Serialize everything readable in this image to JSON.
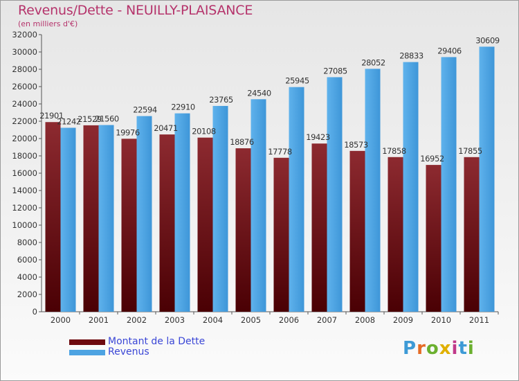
{
  "title": "Revenus/Dette - NEUILLY-PLAISANCE",
  "subtitle": "(en milliers d'€)",
  "logo": {
    "text": "Proxiti",
    "letters": [
      {
        "ch": "P",
        "color": "#3d9ad6"
      },
      {
        "ch": "r",
        "color": "#e56b25"
      },
      {
        "ch": "o",
        "color": "#6bb02f"
      },
      {
        "ch": "x",
        "color": "#e0b000"
      },
      {
        "ch": "i",
        "color": "#c0398a"
      },
      {
        "ch": "t",
        "color": "#3d9ad6"
      },
      {
        "ch": "i",
        "color": "#6bb02f"
      }
    ]
  },
  "colors": {
    "dette": "#7a0f14",
    "revenus": "#4da3e2",
    "title": "#b5336b",
    "legend_text": "#3a46d6"
  },
  "chart_data": {
    "type": "bar",
    "title": "Revenus/Dette - NEUILLY-PLAISANCE",
    "subtitle": "(en milliers d'€)",
    "categories": [
      "2000",
      "2001",
      "2002",
      "2003",
      "2004",
      "2005",
      "2006",
      "2007",
      "2008",
      "2009",
      "2010",
      "2011"
    ],
    "series": [
      {
        "name": "Montant de la Dette",
        "values": [
          21901,
          21529,
          19976,
          20471,
          20108,
          18876,
          17778,
          19423,
          18573,
          17858,
          16952,
          17855
        ]
      },
      {
        "name": "Revenus",
        "values": [
          21242,
          21560,
          22594,
          22910,
          23765,
          24540,
          25945,
          27085,
          28052,
          28833,
          29406,
          30609
        ]
      }
    ],
    "data_labels": [
      [
        "21901",
        "21529",
        "19976",
        "20471",
        "20108",
        "18876",
        "17778",
        "19423",
        "18573",
        "17858",
        "16952",
        "17855"
      ],
      [
        "21242",
        "21560",
        "22594",
        "22910",
        "23765",
        "24540",
        "25945",
        "27085",
        "28052",
        "28833",
        "29406",
        "30609"
      ]
    ],
    "ylim": [
      0,
      32000
    ],
    "yticks": [
      0,
      2000,
      4000,
      6000,
      8000,
      10000,
      12000,
      14000,
      16000,
      18000,
      20000,
      22000,
      24000,
      26000,
      28000,
      30000,
      32000
    ],
    "grid": false,
    "legend": "bottom-left"
  }
}
